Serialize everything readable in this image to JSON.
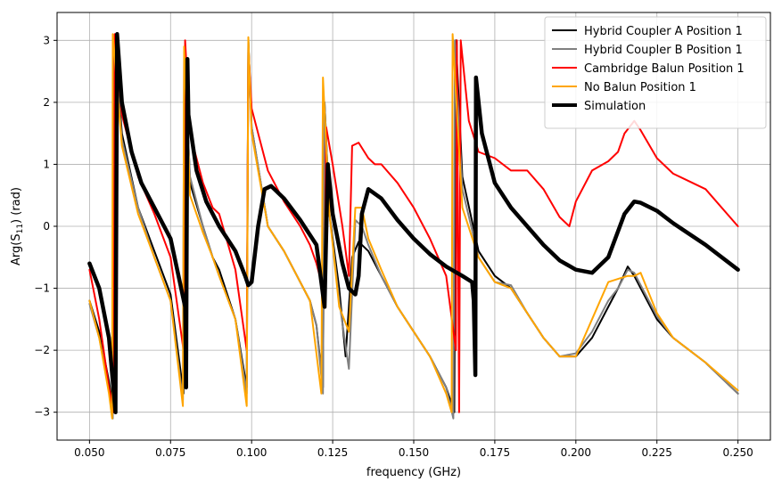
{
  "chart_data": {
    "type": "line",
    "title": "",
    "xlabel": "frequency (GHz)",
    "ylabel": "Arg(S11) (rad)",
    "ylabel_parts": {
      "main": "Arg(S",
      "sub": "11",
      "tail": ") (rad)"
    },
    "xlim": [
      0.04,
      0.26
    ],
    "ylim": [
      -3.45,
      3.45
    ],
    "xticks": [
      0.05,
      0.075,
      0.1,
      0.125,
      0.15,
      0.175,
      0.2,
      0.225,
      0.25
    ],
    "xtick_labels": [
      "0.050",
      "0.075",
      "0.100",
      "0.125",
      "0.150",
      "0.175",
      "0.200",
      "0.225",
      "0.250"
    ],
    "yticks": [
      -3,
      -2,
      -1,
      0,
      1,
      2,
      3
    ],
    "ytick_labels": [
      "−3",
      "−2",
      "−1",
      "0",
      "1",
      "2",
      "3"
    ],
    "grid": true,
    "legend_position": "top-right",
    "series": [
      {
        "name": "Hybrid Coupler A Position 1",
        "color": "#000000",
        "width": 2,
        "x": [
          0.05,
          0.053,
          0.056,
          0.0575,
          0.0578,
          0.06,
          0.065,
          0.07,
          0.075,
          0.079,
          0.0795,
          0.081,
          0.085,
          0.088,
          0.09,
          0.095,
          0.0985,
          0.099,
          0.1,
          0.105,
          0.11,
          0.114,
          0.115,
          0.118,
          0.12,
          0.122,
          0.1225,
          0.124,
          0.127,
          0.129,
          0.131,
          0.133,
          0.136,
          0.14,
          0.145,
          0.15,
          0.155,
          0.16,
          0.1625,
          0.163,
          0.165,
          0.17,
          0.175,
          0.18,
          0.185,
          0.19,
          0.195,
          0.2,
          0.205,
          0.21,
          0.213,
          0.216,
          0.218,
          0.22,
          0.225,
          0.23,
          0.24,
          0.25
        ],
        "y": [
          -1.2,
          -1.7,
          -2.5,
          -3.0,
          3.0,
          1.5,
          0.3,
          -0.4,
          -1.1,
          -2.7,
          2.8,
          0.7,
          0.0,
          -0.5,
          -0.7,
          -1.5,
          -2.6,
          3.0,
          1.6,
          0.0,
          -0.4,
          -0.8,
          -0.9,
          -1.2,
          -1.6,
          -2.6,
          2.0,
          0.2,
          -1.0,
          -2.1,
          -0.5,
          -0.25,
          -0.4,
          -0.8,
          -1.3,
          -1.7,
          -2.1,
          -2.6,
          -3.0,
          3.0,
          0.8,
          -0.4,
          -0.8,
          -1.0,
          -1.4,
          -1.8,
          -2.1,
          -2.1,
          -1.8,
          -1.3,
          -1.0,
          -0.65,
          -0.8,
          -1.0,
          -1.5,
          -1.8,
          -2.2,
          -2.7
        ]
      },
      {
        "name": "Hybrid Coupler B Position 1",
        "color": "#808080",
        "width": 2,
        "x": [
          0.05,
          0.053,
          0.056,
          0.0572,
          0.0575,
          0.06,
          0.065,
          0.07,
          0.075,
          0.0788,
          0.0792,
          0.081,
          0.085,
          0.088,
          0.09,
          0.095,
          0.0985,
          0.099,
          0.1,
          0.105,
          0.11,
          0.114,
          0.115,
          0.118,
          0.12,
          0.122,
          0.1225,
          0.124,
          0.127,
          0.13,
          0.132,
          0.134,
          0.136,
          0.14,
          0.145,
          0.15,
          0.155,
          0.16,
          0.1622,
          0.1627,
          0.165,
          0.17,
          0.175,
          0.18,
          0.185,
          0.19,
          0.195,
          0.2,
          0.205,
          0.21,
          0.213,
          0.216,
          0.218,
          0.22,
          0.225,
          0.23,
          0.24,
          0.25
        ],
        "y": [
          -1.25,
          -1.8,
          -2.6,
          -3.1,
          3.0,
          1.4,
          0.3,
          -0.5,
          -1.2,
          -2.8,
          2.7,
          0.8,
          0.0,
          -0.5,
          -0.8,
          -1.5,
          -2.7,
          3.0,
          1.6,
          0.0,
          -0.4,
          -0.8,
          -0.9,
          -1.2,
          -1.6,
          -2.7,
          2.0,
          0.2,
          -1.2,
          -2.3,
          0.1,
          0.0,
          -0.3,
          -0.8,
          -1.3,
          -1.7,
          -2.1,
          -2.6,
          -3.1,
          3.0,
          0.6,
          -0.5,
          -0.9,
          -0.95,
          -1.4,
          -1.8,
          -2.1,
          -2.05,
          -1.7,
          -1.2,
          -1.0,
          -0.7,
          -0.75,
          -0.95,
          -1.45,
          -1.8,
          -2.2,
          -2.7
        ]
      },
      {
        "name": "Cambridge Balun Position 1",
        "color": "#ff0000",
        "width": 2,
        "x": [
          0.05,
          0.053,
          0.056,
          0.0575,
          0.0578,
          0.06,
          0.065,
          0.07,
          0.075,
          0.079,
          0.0795,
          0.081,
          0.085,
          0.088,
          0.09,
          0.095,
          0.0985,
          0.099,
          0.1,
          0.105,
          0.11,
          0.115,
          0.118,
          0.12,
          0.1225,
          0.123,
          0.125,
          0.128,
          0.13,
          0.131,
          0.133,
          0.136,
          0.138,
          0.14,
          0.145,
          0.15,
          0.155,
          0.16,
          0.163,
          0.1633,
          0.164,
          0.1645,
          0.167,
          0.17,
          0.175,
          0.18,
          0.185,
          0.19,
          0.195,
          0.198,
          0.2,
          0.205,
          0.21,
          0.213,
          0.215,
          0.218,
          0.22,
          0.225,
          0.23,
          0.24,
          0.25
        ],
        "y": [
          -0.7,
          -1.5,
          -2.6,
          -3.0,
          3.1,
          1.8,
          0.8,
          0.2,
          -0.5,
          -2.0,
          3.0,
          1.5,
          0.7,
          0.3,
          0.2,
          -0.7,
          -2.0,
          2.9,
          1.9,
          0.9,
          0.4,
          0.0,
          -0.3,
          -0.6,
          -1.1,
          1.6,
          1.0,
          0.0,
          -0.8,
          1.3,
          1.35,
          1.1,
          1.0,
          1.0,
          0.7,
          0.3,
          -0.2,
          -0.8,
          -2.0,
          3.0,
          -3.0,
          3.0,
          1.7,
          1.2,
          1.1,
          0.9,
          0.9,
          0.6,
          0.15,
          0.0,
          0.4,
          0.9,
          1.05,
          1.2,
          1.5,
          1.7,
          1.55,
          1.1,
          0.85,
          0.6,
          0.0
        ]
      },
      {
        "name": "No Balun Position 1",
        "color": "#ffa500",
        "width": 2,
        "x": [
          0.05,
          0.053,
          0.056,
          0.057,
          0.0572,
          0.06,
          0.065,
          0.07,
          0.075,
          0.0788,
          0.0792,
          0.081,
          0.085,
          0.088,
          0.09,
          0.095,
          0.0985,
          0.099,
          0.1,
          0.105,
          0.11,
          0.114,
          0.115,
          0.118,
          0.1215,
          0.122,
          0.124,
          0.127,
          0.13,
          0.132,
          0.134,
          0.136,
          0.14,
          0.145,
          0.15,
          0.155,
          0.16,
          0.1617,
          0.162,
          0.165,
          0.17,
          0.175,
          0.18,
          0.185,
          0.19,
          0.195,
          0.2,
          0.205,
          0.21,
          0.213,
          0.216,
          0.218,
          0.22,
          0.225,
          0.23,
          0.24,
          0.25
        ],
        "y": [
          -1.2,
          -1.8,
          -2.7,
          -3.1,
          3.1,
          1.3,
          0.2,
          -0.5,
          -1.2,
          -2.9,
          2.9,
          0.5,
          -0.1,
          -0.5,
          -0.8,
          -1.5,
          -2.9,
          3.05,
          1.5,
          0.0,
          -0.4,
          -0.8,
          -0.9,
          -1.2,
          -2.7,
          2.4,
          0.2,
          -1.3,
          -1.7,
          0.3,
          0.3,
          -0.2,
          -0.7,
          -1.3,
          -1.7,
          -2.1,
          -2.7,
          -3.0,
          3.1,
          0.3,
          -0.5,
          -0.9,
          -1.0,
          -1.4,
          -1.8,
          -2.1,
          -2.1,
          -1.5,
          -0.9,
          -0.85,
          -0.8,
          -0.8,
          -0.75,
          -1.4,
          -1.8,
          -2.2,
          -2.65
        ]
      },
      {
        "name": "Simulation",
        "color": "#000000",
        "width": 4.5,
        "x": [
          0.05,
          0.053,
          0.056,
          0.058,
          0.0585,
          0.06,
          0.063,
          0.066,
          0.07,
          0.075,
          0.0795,
          0.0798,
          0.0802,
          0.0805,
          0.083,
          0.086,
          0.09,
          0.095,
          0.098,
          0.099,
          0.1,
          0.102,
          0.104,
          0.106,
          0.11,
          0.115,
          0.12,
          0.1225,
          0.1235,
          0.125,
          0.128,
          0.13,
          0.132,
          0.133,
          0.134,
          0.136,
          0.14,
          0.145,
          0.15,
          0.155,
          0.16,
          0.165,
          0.168,
          0.1685,
          0.169,
          0.1692,
          0.171,
          0.175,
          0.18,
          0.185,
          0.19,
          0.195,
          0.2,
          0.205,
          0.21,
          0.215,
          0.218,
          0.22,
          0.225,
          0.23,
          0.24,
          0.25
        ],
        "y": [
          -0.6,
          -1.0,
          -1.8,
          -3.0,
          3.1,
          2.0,
          1.2,
          0.7,
          0.3,
          -0.2,
          -1.3,
          -2.6,
          2.7,
          1.8,
          0.9,
          0.4,
          0.0,
          -0.4,
          -0.8,
          -0.95,
          -0.9,
          0.0,
          0.6,
          0.65,
          0.45,
          0.1,
          -0.3,
          -1.3,
          1.0,
          0.2,
          -0.6,
          -1.0,
          -1.1,
          -0.8,
          0.2,
          0.6,
          0.45,
          0.1,
          -0.2,
          -0.45,
          -0.65,
          -0.8,
          -0.9,
          -1.2,
          -2.4,
          2.4,
          1.5,
          0.7,
          0.3,
          0.0,
          -0.3,
          -0.55,
          -0.7,
          -0.75,
          -0.5,
          0.2,
          0.4,
          0.38,
          0.25,
          0.05,
          -0.3,
          -0.7
        ]
      }
    ]
  }
}
